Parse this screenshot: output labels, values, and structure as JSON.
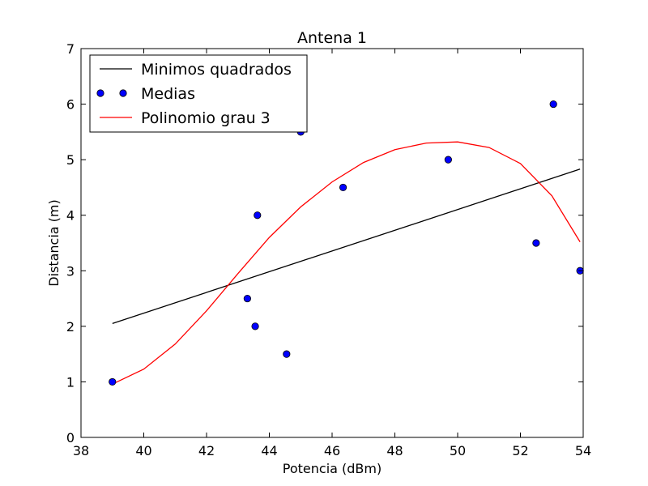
{
  "chart_data": {
    "type": "scatter",
    "title": "Antena 1",
    "xlabel": "Potencia (dBm)",
    "ylabel": "Distancia (m)",
    "xlim": [
      38,
      54
    ],
    "ylim": [
      0,
      7
    ],
    "xticks": [
      38,
      40,
      42,
      44,
      46,
      48,
      50,
      52,
      54
    ],
    "yticks": [
      0,
      1,
      2,
      3,
      4,
      5,
      6,
      7
    ],
    "grid": false,
    "legend": "top-left",
    "series": [
      {
        "name": "Minimos quadrados",
        "kind": "line",
        "color": "#000000",
        "x": [
          39.0,
          53.9
        ],
        "y": [
          2.05,
          4.83
        ]
      },
      {
        "name": "Medias",
        "kind": "scatter",
        "color": "#0000ff",
        "x": [
          39.0,
          43.3,
          43.55,
          43.62,
          44.55,
          45.0,
          46.35,
          49.7,
          52.5,
          53.05,
          53.9
        ],
        "y": [
          1.0,
          2.5,
          2.0,
          4.0,
          1.5,
          5.5,
          4.5,
          5.0,
          3.5,
          6.0,
          3.0
        ]
      },
      {
        "name": "Polinomio grau 3",
        "kind": "line",
        "color": "#ff0000",
        "x": [
          39.0,
          40.0,
          41.0,
          42.0,
          43.0,
          44.0,
          45.0,
          46.0,
          47.0,
          48.0,
          49.0,
          50.0,
          51.0,
          52.0,
          53.0,
          53.9
        ],
        "y": [
          0.96,
          1.23,
          1.68,
          2.28,
          2.95,
          3.6,
          4.15,
          4.6,
          4.95,
          5.18,
          5.3,
          5.32,
          5.22,
          4.93,
          4.35,
          3.52
        ]
      }
    ]
  }
}
